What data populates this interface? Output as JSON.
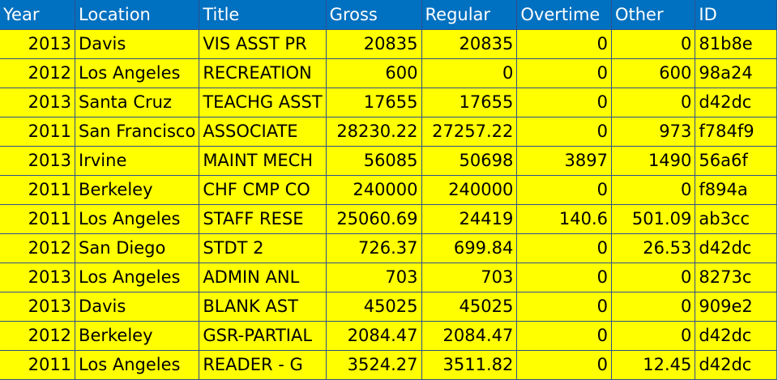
{
  "columns": [
    "Year",
    "Location",
    "Title",
    "Gross",
    "Regular",
    "Overtime",
    "Other",
    "ID"
  ],
  "rows": [
    [
      "2013",
      "Davis",
      "VIS ASST PR",
      "20835",
      "20835",
      "0",
      "0",
      "81b8e"
    ],
    [
      "2012",
      "Los Angeles",
      "RECREATION",
      "600",
      "0",
      "0",
      "600",
      "98a24"
    ],
    [
      "2013",
      "Santa Cruz",
      "TEACHG ASST",
      "17655",
      "17655",
      "0",
      "0",
      "d42dc"
    ],
    [
      "2011",
      "San Francisco",
      "ASSOCIATE",
      "28230.22",
      "27257.22",
      "0",
      "973",
      "f784f9"
    ],
    [
      "2013",
      "Irvine",
      "MAINT MECH",
      "56085",
      "50698",
      "3897",
      "1490",
      "56a6f"
    ],
    [
      "2011",
      "Berkeley",
      "CHF CMP CO",
      "240000",
      "240000",
      "0",
      "0",
      "f894a"
    ],
    [
      "2011",
      "Los Angeles",
      "STAFF RESE",
      "25060.69",
      "24419",
      "140.6",
      "501.09",
      "ab3cc"
    ],
    [
      "2012",
      "San Diego",
      "STDT 2",
      "726.37",
      "699.84",
      "0",
      "26.53",
      "d42dc"
    ],
    [
      "2013",
      "Los Angeles",
      "ADMIN ANL",
      "703",
      "703",
      "0",
      "0",
      "8273c"
    ],
    [
      "2013",
      "Davis",
      "BLANK AST",
      "45025",
      "45025",
      "0",
      "0",
      "909e2"
    ],
    [
      "2012",
      "Berkeley",
      "GSR-PARTIAL",
      "2084.47",
      "2084.47",
      "0",
      "0",
      "d42dc"
    ],
    [
      "2011",
      "Los Angeles",
      "READER - G",
      "3524.27",
      "3511.82",
      "0",
      "12.45",
      "d42dc"
    ]
  ],
  "colors": {
    "header_bg": "#0070c0",
    "header_text": "#ffffff",
    "cell_bg": "#ffff00",
    "grid": "#2f4f8f"
  }
}
